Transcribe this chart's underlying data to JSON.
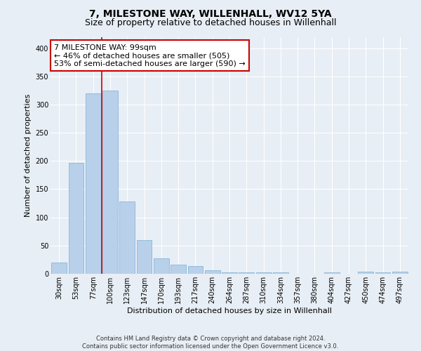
{
  "title": "7, MILESTONE WAY, WILLENHALL, WV12 5YA",
  "subtitle": "Size of property relative to detached houses in Willenhall",
  "xlabel": "Distribution of detached houses by size in Willenhall",
  "ylabel": "Number of detached properties",
  "categories": [
    "30sqm",
    "53sqm",
    "77sqm",
    "100sqm",
    "123sqm",
    "147sqm",
    "170sqm",
    "193sqm",
    "217sqm",
    "240sqm",
    "264sqm",
    "287sqm",
    "310sqm",
    "334sqm",
    "357sqm",
    "380sqm",
    "404sqm",
    "427sqm",
    "450sqm",
    "474sqm",
    "497sqm"
  ],
  "values": [
    20,
    197,
    320,
    325,
    128,
    60,
    27,
    16,
    14,
    6,
    3,
    3,
    3,
    2,
    0,
    0,
    2,
    0,
    4,
    2,
    4
  ],
  "bar_color": "#b8d0ea",
  "bar_edge_color": "#7aafd4",
  "vline_color": "#cc0000",
  "vline_index": 2.5,
  "annotation_text": "7 MILESTONE WAY: 99sqm\n← 46% of detached houses are smaller (505)\n53% of semi-detached houses are larger (590) →",
  "annotation_box_color": "white",
  "annotation_box_edge": "#cc0000",
  "ylim": [
    0,
    420
  ],
  "yticks": [
    0,
    50,
    100,
    150,
    200,
    250,
    300,
    350,
    400
  ],
  "footer_line1": "Contains HM Land Registry data © Crown copyright and database right 2024.",
  "footer_line2": "Contains public sector information licensed under the Open Government Licence v3.0.",
  "bg_color": "#e8eef5",
  "plot_bg_color": "#e8eef5",
  "title_fontsize": 10,
  "subtitle_fontsize": 9,
  "tick_fontsize": 7,
  "ylabel_fontsize": 8,
  "xlabel_fontsize": 8,
  "annotation_fontsize": 8,
  "footer_fontsize": 6
}
